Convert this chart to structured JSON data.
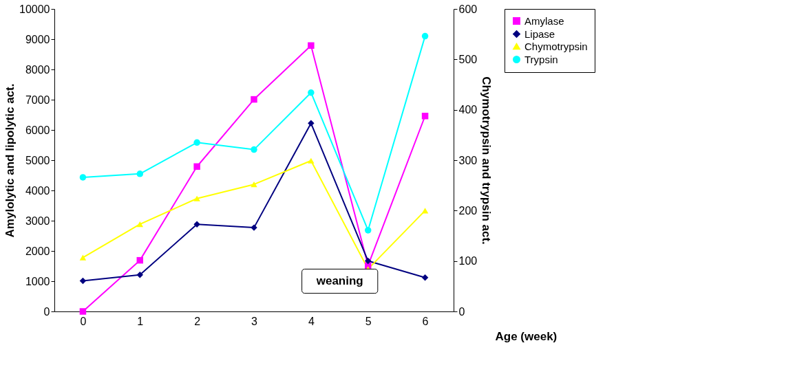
{
  "chart_data": {
    "type": "line",
    "categories": [
      "0",
      "1",
      "2",
      "3",
      "4",
      "5",
      "6"
    ],
    "series": [
      {
        "name": "Amylase",
        "color": "#ff00ff",
        "marker": "square",
        "values": [
          0,
          1690,
          4790,
          7010,
          8790,
          1520,
          6460
        ]
      },
      {
        "name": "Lipase",
        "color": "#000080",
        "marker": "diamond",
        "values": [
          1010,
          1210,
          2880,
          2770,
          6220,
          1670,
          1120
        ]
      },
      {
        "name": "Chymotrypsin",
        "color": "#ffff00",
        "marker": "triangle",
        "axis": "y2",
        "values": [
          107,
          173,
          224,
          252,
          299,
          84,
          200
        ]
      },
      {
        "name": "Trypsin",
        "color": "#00ffff",
        "marker": "circle",
        "axis": "y2",
        "values": [
          266,
          273,
          335,
          321,
          434,
          161,
          546
        ]
      }
    ],
    "xlabel": "Age (week)",
    "ylabel": "Amylolytic and lipolytic act.",
    "y2label": "Chymotrypsin and trypsin act.",
    "ylim": [
      0,
      10000
    ],
    "yticks": [
      0,
      1000,
      2000,
      3000,
      4000,
      5000,
      6000,
      7000,
      8000,
      9000,
      10000
    ],
    "y2lim": [
      0,
      600
    ],
    "y2ticks": [
      0,
      100,
      200,
      300,
      400,
      500,
      600
    ],
    "annotations": [
      "weaning"
    ],
    "grid": false,
    "legend": "right"
  }
}
